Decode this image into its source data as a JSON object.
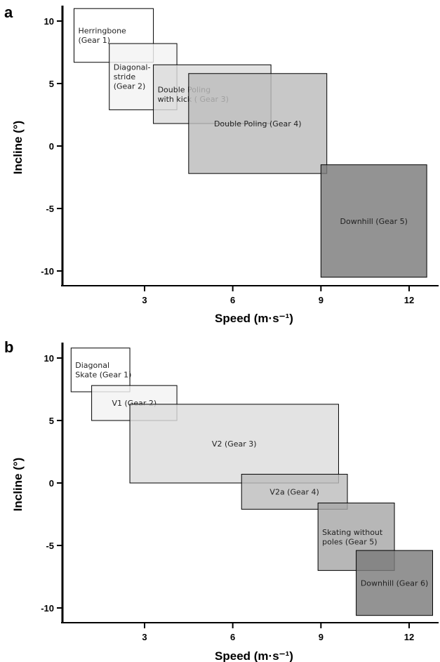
{
  "chart_data": [
    {
      "type": "range-boxes",
      "panel": "a",
      "xlabel": "Speed (m·s⁻¹)",
      "ylabel": "Incline (°)",
      "xticks": [
        3,
        6,
        9,
        12
      ],
      "yticks": [
        10,
        5,
        0,
        -5,
        -10
      ],
      "xlim": [
        0.4,
        13.4
      ],
      "ylim": [
        -10.6,
        11.1
      ],
      "series": [
        {
          "name": "Herringbone (Gear 1)",
          "lines": [
            "Herringbone",
            "(Gear 1)"
          ],
          "x": [
            0.6,
            3.3
          ],
          "y": [
            6.7,
            11.0
          ],
          "color": "#ffffff"
        },
        {
          "name": "Diagonal-stride (Gear 2)",
          "lines": [
            "Diagonal-",
            "stride",
            "(Gear 2)"
          ],
          "x": [
            1.8,
            4.1
          ],
          "y": [
            2.9,
            8.2
          ],
          "color": "#f3f3f3"
        },
        {
          "name": "Double Poling with kick (Gear 3)",
          "lines": [
            "Double Poling",
            "with kick ( Gear 3)"
          ],
          "x": [
            3.3,
            7.3
          ],
          "y": [
            1.8,
            6.5
          ],
          "color": "#dcdcdc"
        },
        {
          "name": "Double Poling (Gear 4)",
          "lines": [
            "Double Poling (Gear 4)"
          ],
          "x": [
            4.5,
            9.2
          ],
          "y": [
            -2.2,
            5.8
          ],
          "color": "#bcbcbc"
        },
        {
          "name": "Downhill (Gear 5)",
          "lines": [
            "Downhill (Gear 5)"
          ],
          "x": [
            9.0,
            12.6
          ],
          "y": [
            -10.5,
            -1.5
          ],
          "color": "#7b7b7b"
        }
      ]
    },
    {
      "type": "range-boxes",
      "panel": "b",
      "xlabel": "Speed (m·s⁻¹)",
      "ylabel": "Incline (°)",
      "xticks": [
        3,
        6,
        9,
        12
      ],
      "yticks": [
        10,
        5,
        0,
        -5,
        -10
      ],
      "xlim": [
        0.4,
        13.4
      ],
      "ylim": [
        -10.6,
        11.1
      ],
      "series": [
        {
          "name": "Diagonal Skate (Gear 1)",
          "lines": [
            "Diagonal",
            "Skate (Gear 1)"
          ],
          "x": [
            0.5,
            2.5
          ],
          "y": [
            7.3,
            10.8
          ],
          "color": "#ffffff"
        },
        {
          "name": "V1 (Gear 2)",
          "lines": [
            "V1 (Gear 2)"
          ],
          "x": [
            1.2,
            4.1
          ],
          "y": [
            5.0,
            7.8
          ],
          "color": "#f3f3f3"
        },
        {
          "name": "V2 (Gear 3)",
          "lines": [
            "V2 (Gear 3)"
          ],
          "x": [
            2.5,
            9.6
          ],
          "y": [
            0.0,
            6.3
          ],
          "color": "#dddddd"
        },
        {
          "name": "V2a (Gear 4)",
          "lines": [
            "V2a (Gear 4)"
          ],
          "x": [
            6.3,
            9.9
          ],
          "y": [
            -2.1,
            0.7
          ],
          "color": "#bdbdbd"
        },
        {
          "name": "Skating without poles (Gear 5)",
          "lines": [
            "Skating without",
            "poles (Gear 5)"
          ],
          "x": [
            8.9,
            11.5
          ],
          "y": [
            -7.0,
            -1.6
          ],
          "color": "#a7a7a7"
        },
        {
          "name": "Downhill (Gear 6)",
          "lines": [
            "Downhill (Gear 6)"
          ],
          "x": [
            10.2,
            12.8
          ],
          "y": [
            -10.6,
            -5.4
          ],
          "color": "#7b7b7b"
        }
      ]
    }
  ]
}
